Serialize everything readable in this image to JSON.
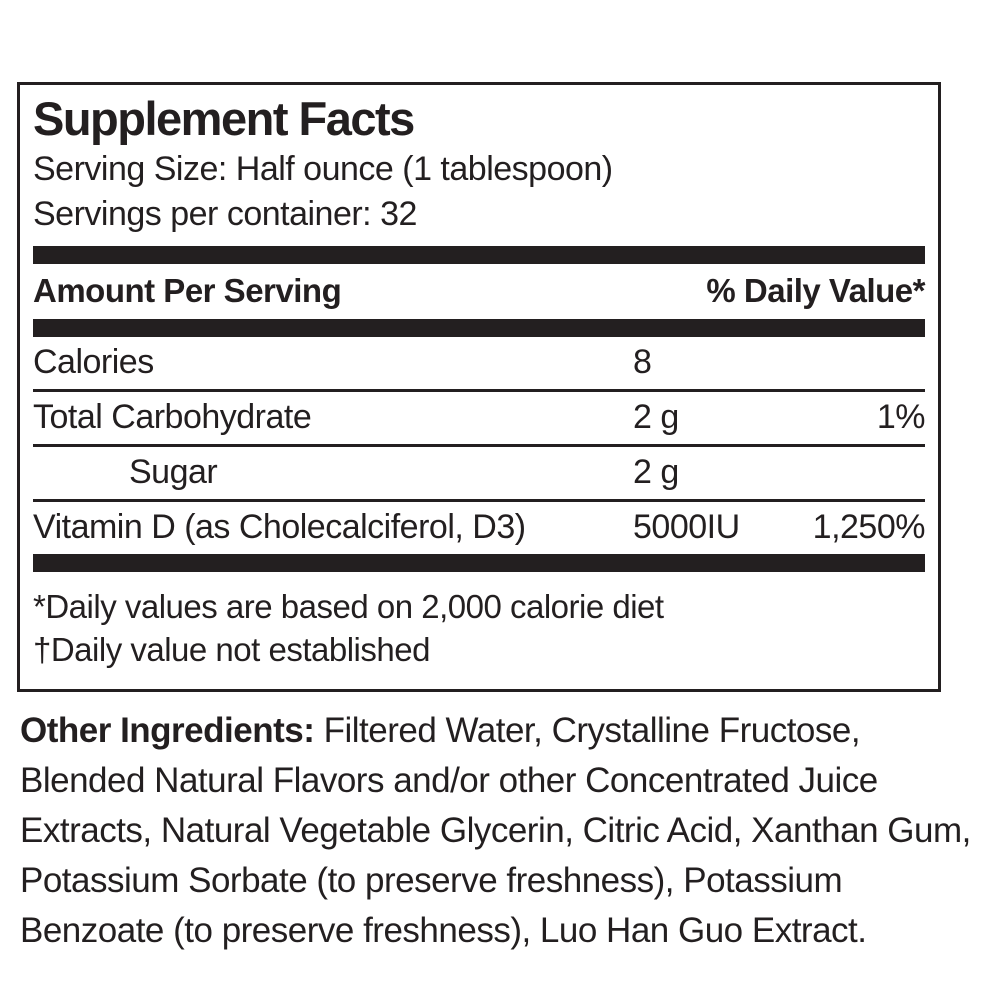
{
  "label": {
    "title": "Supplement Facts",
    "serving_size": "Serving Size: Half ounce (1 tablespoon)",
    "servings_per_container": "Servings per container: 32",
    "columns": {
      "amount_header": "Amount Per Serving",
      "daily_value_header": "% Daily Value*"
    },
    "rows": [
      {
        "name": "Calories",
        "amount": "8",
        "dv": ""
      },
      {
        "name": "Total Carbohydrate",
        "amount": "2 g",
        "dv": "1%"
      },
      {
        "name": "Sugar",
        "amount": "2 g",
        "dv": ""
      },
      {
        "name": "Vitamin D (as Cholecalciferol, D3)",
        "amount": "5000IU",
        "dv": "1,250%"
      }
    ],
    "footnotes": [
      "*Daily values are based on 2,000 calorie diet",
      "†Daily value not established"
    ],
    "colors": {
      "ink": "#231f20",
      "background": "#ffffff"
    }
  },
  "other_ingredients": {
    "heading": "Other Ingredients:",
    "text": " Filtered Water, Crystalline Fructose, Blended Natural Flavors and/or other Concentrated Juice Extracts, Natural Vegetable Glycerin, Citric Acid, Xanthan Gum, Potassium Sorbate (to preserve freshness), Potassium Benzoate (to preserve freshness), Luo Han Guo Extract."
  }
}
